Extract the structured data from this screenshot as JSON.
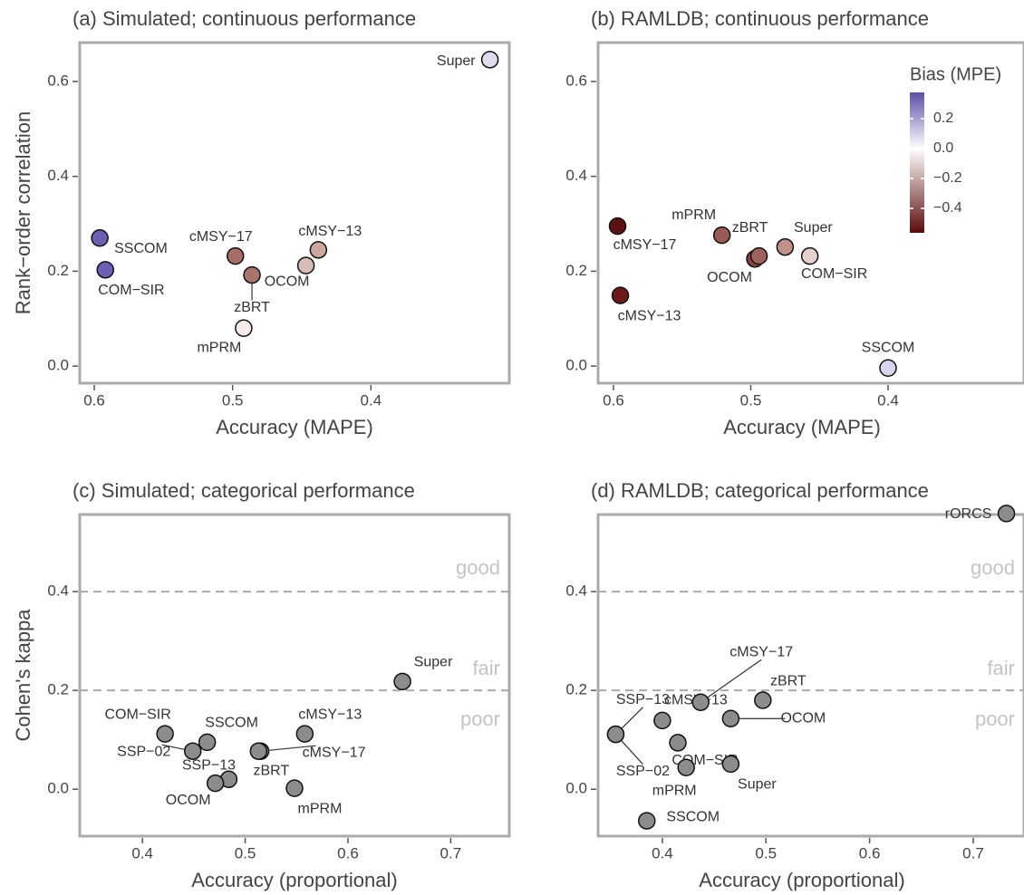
{
  "chart_data": [
    {
      "type": "scatter",
      "title": "(a) Simulated; continuous performance",
      "x_label": "Accuracy (MAPE)",
      "y_label": "Rank−order correlation",
      "xlim": [
        0.6105,
        0.3
      ],
      "ylim": [
        -0.036,
        0.682
      ],
      "xticks": [
        0.6,
        0.5,
        0.4
      ],
      "yticks": [
        {
          "value": 0,
          "label": "0.0"
        },
        0.2,
        0.4,
        0.6
      ],
      "labels": [
        "Super",
        "SSCOM",
        "COM−SIR",
        "cMSY−17",
        "OCOM",
        "zBRT",
        "cMSY−13",
        "mPRM"
      ],
      "x": [
        0.314,
        0.596,
        0.592,
        0.498,
        0.447,
        0.486,
        0.438,
        0.492
      ],
      "y": [
        0.646,
        0.27,
        0.203,
        0.232,
        0.212,
        0.192,
        0.245,
        0.08
      ],
      "colors": [
        "#e0dcee",
        "#6a5fb0",
        "#6b60b3",
        "#a86d66",
        "#d7bcb7",
        "#a8746b",
        "#cca79f",
        "#f5ebe9"
      ]
    },
    {
      "type": "scatter",
      "title": "(b) RAMLDB; continuous performance",
      "x_label": "Accuracy (MAPE)",
      "xlim": [
        0.6112,
        0.301
      ],
      "ylim": [
        -0.036,
        0.682
      ],
      "xticks": [
        0.6,
        0.5,
        0.4
      ],
      "yticks": [
        {
          "value": 0,
          "label": "0.0"
        },
        0.2,
        0.4,
        0.6
      ],
      "labels": [
        "cMSY−17",
        "cMSY−13",
        "mPRM",
        "OCOM",
        "zBRT",
        "Super",
        "COM−SIR",
        "SSCOM"
      ],
      "x": [
        0.597,
        0.595,
        0.521,
        0.497,
        0.494,
        0.475,
        0.457,
        0.4
      ],
      "y": [
        0.295,
        0.149,
        0.276,
        0.226,
        0.232,
        0.251,
        0.232,
        -0.004
      ],
      "colors": [
        "#5e1111",
        "#6a1a1a",
        "#9a5a55",
        "#8a4440",
        "#a0625c",
        "#c0908a",
        "#e6d0cc",
        "#d8d4ec"
      ],
      "colorbar": {
        "title": "Bias (MPE)",
        "lim": [
          -0.564,
          0.376
        ],
        "ticks": [
          0.2,
          {
            "value": 0,
            "label": "0.0"
          },
          {
            "value": -0.2,
            "label": "−0.2"
          },
          {
            "value": -0.4,
            "label": "−0.4"
          }
        ],
        "colors": [
          "#5a0c0c",
          "#ffffff",
          "#5b50a6"
        ]
      }
    },
    {
      "type": "scatter",
      "title": "(c) Simulated; categorical performance",
      "x_label": "Accuracy (proportional)",
      "y_label": "Cohen's kappa",
      "xlim": [
        0.339,
        0.757
      ],
      "ylim": [
        -0.095,
        0.556
      ],
      "xticks": [
        0.4,
        0.5,
        0.6,
        0.7
      ],
      "yticks": [
        {
          "value": 0,
          "label": "0.0"
        },
        0.2,
        0.4
      ],
      "hlines": [
        0.2,
        0.4
      ],
      "annotations": [
        "good",
        "fair",
        "poor"
      ],
      "labels": [
        "Super",
        "COM−SIR",
        "SSCOM",
        "SSP−02",
        "SSP−13",
        "OCOM",
        "cMSY−17",
        "zBRT",
        "cMSY−13",
        "mPRM"
      ],
      "x": [
        0.653,
        0.422,
        0.463,
        0.449,
        0.484,
        0.471,
        0.515,
        0.513,
        0.558,
        0.548
      ],
      "y": [
        0.218,
        0.112,
        0.095,
        0.077,
        0.02,
        0.012,
        0.077,
        0.077,
        0.112,
        0.002
      ],
      "color": "#8c8c8c"
    },
    {
      "type": "scatter",
      "title": "(d) RAMLDB; categorical performance",
      "x_label": "Accuracy (proportional)",
      "xlim": [
        0.338,
        0.749
      ],
      "ylim": [
        -0.095,
        0.556
      ],
      "xticks": [
        0.4,
        0.5,
        0.6,
        0.7
      ],
      "yticks": [
        {
          "value": 0,
          "label": "0.0"
        },
        0.2,
        0.4
      ],
      "hlines": [
        0.2,
        0.4
      ],
      "annotations": [
        "good",
        "fair",
        "poor"
      ],
      "labels": [
        "rORCS",
        "SSP−13",
        "SSP−02",
        "cMSY−13",
        "cMSY−17",
        "COM−SIR",
        "mPRM",
        "zBRT",
        "OCOM",
        "Super",
        "SSCOM"
      ],
      "x": [
        0.732,
        0.355,
        0.355,
        0.4,
        0.437,
        0.415,
        0.423,
        0.497,
        0.466,
        0.466,
        0.385
      ],
      "y": [
        0.558,
        0.111,
        0.111,
        0.139,
        0.176,
        0.094,
        0.044,
        0.18,
        0.143,
        0.051,
        -0.064
      ],
      "color": "#8c8c8c"
    }
  ]
}
